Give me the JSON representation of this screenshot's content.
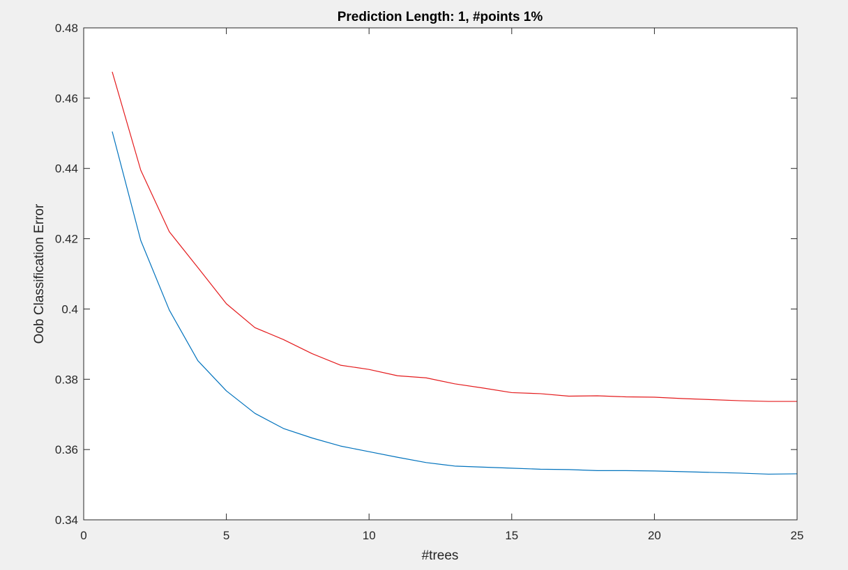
{
  "chart_data": {
    "type": "line",
    "title": "Prediction Length: 1, #points 1%",
    "xlabel": "#trees",
    "ylabel": "Oob Classification Error",
    "xlim": [
      0,
      25
    ],
    "ylim": [
      0.34,
      0.48
    ],
    "xticks": [
      0,
      5,
      10,
      15,
      20,
      25
    ],
    "xtick_labels": [
      "0",
      "5",
      "10",
      "15",
      "20",
      "25"
    ],
    "yticks": [
      0.34,
      0.36,
      0.38,
      0.4,
      0.42,
      0.44,
      0.46,
      0.48
    ],
    "ytick_labels": [
      "0.34",
      "0.36",
      "0.38",
      "0.4",
      "0.42",
      "0.44",
      "0.46",
      "0.48"
    ],
    "grid": false,
    "x": [
      1,
      2,
      3,
      4,
      5,
      6,
      7,
      8,
      9,
      10,
      11,
      12,
      13,
      14,
      15,
      16,
      17,
      18,
      19,
      20,
      21,
      22,
      23,
      24,
      25
    ],
    "series": [
      {
        "color": "#e41a1c",
        "values": [
          0.4675,
          0.4395,
          0.422,
          0.4118,
          0.4015,
          0.3947,
          0.3913,
          0.3873,
          0.384,
          0.3828,
          0.381,
          0.3804,
          0.3787,
          0.3775,
          0.3762,
          0.3759,
          0.3752,
          0.3753,
          0.375,
          0.3749,
          0.3745,
          0.3742,
          0.3739,
          0.3737,
          0.3737
        ]
      },
      {
        "color": "#0072bd",
        "values": [
          0.4505,
          0.4195,
          0.3997,
          0.3853,
          0.3767,
          0.3703,
          0.366,
          0.3633,
          0.361,
          0.3594,
          0.3578,
          0.3563,
          0.3553,
          0.355,
          0.3547,
          0.3544,
          0.3543,
          0.354,
          0.354,
          0.3539,
          0.3537,
          0.3535,
          0.3533,
          0.353,
          0.3531
        ]
      }
    ]
  }
}
